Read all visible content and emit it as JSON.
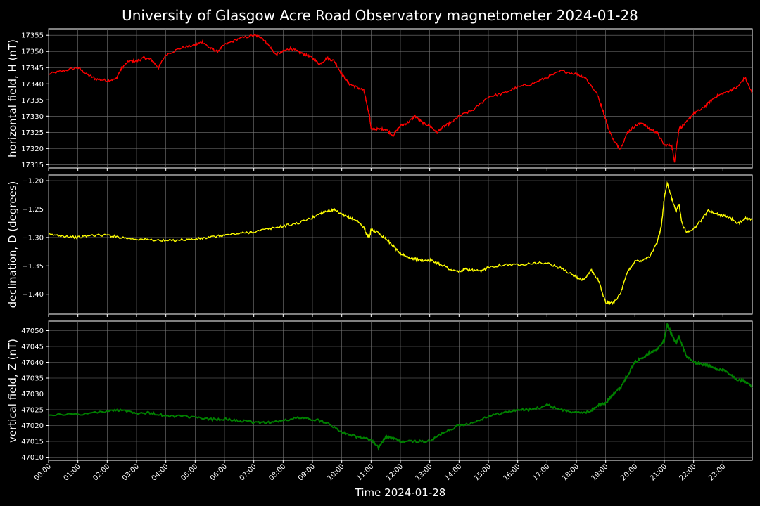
{
  "chart_data": {
    "type": "line",
    "title": "University of Glasgow Acre Road Observatory magnetometer 2024-01-28",
    "xlabel": "Time 2024-01-28",
    "x_ticks": [
      "00:00",
      "01:00",
      "02:00",
      "03:00",
      "04:00",
      "05:00",
      "06:00",
      "07:00",
      "08:00",
      "09:00",
      "10:00",
      "11:00",
      "12:00",
      "13:00",
      "14:00",
      "15:00",
      "16:00",
      "17:00",
      "18:00",
      "19:00",
      "20:00",
      "21:00",
      "22:00",
      "23:00"
    ],
    "x_range_hours": [
      0,
      24
    ],
    "grid": true,
    "panels": [
      {
        "name": "horizontal",
        "ylabel": "horizontal field, H (nT)",
        "color": "#ff0000",
        "ylim": [
          17314,
          17357
        ],
        "yticks": [
          17315,
          17320,
          17325,
          17330,
          17335,
          17340,
          17345,
          17350,
          17355
        ],
        "ytick_labels": [
          "17315",
          "17320",
          "17325",
          "17330",
          "17335",
          "17340",
          "17345",
          "17350",
          "17355"
        ],
        "series": {
          "x": [
            0,
            0.5,
            1,
            1.3,
            1.6,
            2,
            2.3,
            2.5,
            2.75,
            3,
            3.25,
            3.5,
            3.75,
            4,
            4.5,
            5,
            5.25,
            5.5,
            5.75,
            6,
            6.5,
            7,
            7.25,
            7.5,
            7.75,
            8,
            8.25,
            8.5,
            8.75,
            9,
            9.25,
            9.5,
            9.75,
            10,
            10.25,
            10.5,
            10.75,
            10.85,
            10.95,
            11,
            11.25,
            11.5,
            11.75,
            12,
            12.25,
            12.5,
            12.75,
            13,
            13.25,
            13.5,
            13.75,
            14,
            14.5,
            15,
            15.5,
            16,
            16.5,
            17,
            17.5,
            18,
            18.3,
            18.7,
            18.9,
            19.1,
            19.3,
            19.5,
            19.75,
            20,
            20.25,
            20.5,
            20.75,
            21,
            21.25,
            21.35,
            21.5,
            21.75,
            22,
            22.25,
            22.5,
            22.75,
            23,
            23.25,
            23.5,
            23.75,
            24
          ],
          "y": [
            17343,
            17344,
            17345,
            17343,
            17341.5,
            17341,
            17341.5,
            17345,
            17347,
            17347,
            17348,
            17347.5,
            17345,
            17349,
            17351,
            17352,
            17353,
            17351,
            17350,
            17352,
            17354,
            17355,
            17354.5,
            17352,
            17349,
            17350,
            17351,
            17350,
            17349,
            17348,
            17346,
            17348,
            17347,
            17343,
            17340,
            17339,
            17338,
            17334,
            17330,
            17326,
            17326,
            17326,
            17324,
            17327,
            17328,
            17330,
            17328,
            17327,
            17325,
            17327,
            17328,
            17330,
            17332,
            17336,
            17337,
            17339,
            17340,
            17342,
            17344,
            17343,
            17342,
            17337,
            17332,
            17326,
            17322,
            17320,
            17325,
            17327,
            17328,
            17326,
            17325,
            17321,
            17321,
            17316,
            17326,
            17328,
            17331,
            17332,
            17334,
            17336,
            17337,
            17338,
            17339,
            17342,
            17337
          ]
        }
      },
      {
        "name": "declination",
        "ylabel": "declination, D (degrees)",
        "color": "#ffff00",
        "ylim": [
          -1.435,
          -1.19
        ],
        "yticks": [
          -1.4,
          -1.35,
          -1.3,
          -1.25,
          -1.2
        ],
        "ytick_labels": [
          "−1.40",
          "−1.35",
          "−1.30",
          "−1.25",
          "−1.20"
        ],
        "series": {
          "x": [
            0,
            0.5,
            1,
            1.5,
            2,
            2.5,
            3,
            3.5,
            4,
            4.5,
            5,
            5.5,
            6,
            6.5,
            7,
            7.5,
            8,
            8.5,
            9,
            9.25,
            9.5,
            9.75,
            10,
            10.25,
            10.5,
            10.75,
            10.85,
            10.95,
            11,
            11.25,
            11.5,
            11.75,
            12,
            12.25,
            12.5,
            12.75,
            13,
            13.25,
            13.5,
            13.75,
            14,
            14.25,
            14.5,
            14.75,
            15,
            15.5,
            16,
            16.5,
            17,
            17.5,
            18,
            18.25,
            18.5,
            18.75,
            19,
            19.25,
            19.5,
            19.75,
            20,
            20.25,
            20.5,
            20.75,
            20.9,
            21,
            21.1,
            21.25,
            21.4,
            21.5,
            21.6,
            21.75,
            22,
            22.25,
            22.5,
            22.75,
            23,
            23.25,
            23.5,
            23.75,
            24
          ],
          "y": [
            -1.295,
            -1.297,
            -1.3,
            -1.296,
            -1.296,
            -1.3,
            -1.303,
            -1.304,
            -1.306,
            -1.304,
            -1.303,
            -1.3,
            -1.296,
            -1.293,
            -1.29,
            -1.285,
            -1.28,
            -1.275,
            -1.265,
            -1.258,
            -1.253,
            -1.252,
            -1.26,
            -1.265,
            -1.27,
            -1.282,
            -1.295,
            -1.3,
            -1.285,
            -1.292,
            -1.302,
            -1.315,
            -1.328,
            -1.335,
            -1.338,
            -1.34,
            -1.34,
            -1.345,
            -1.35,
            -1.358,
            -1.36,
            -1.356,
            -1.358,
            -1.36,
            -1.352,
            -1.348,
            -1.348,
            -1.345,
            -1.345,
            -1.355,
            -1.37,
            -1.376,
            -1.357,
            -1.375,
            -1.415,
            -1.415,
            -1.4,
            -1.36,
            -1.342,
            -1.34,
            -1.333,
            -1.31,
            -1.28,
            -1.23,
            -1.205,
            -1.23,
            -1.255,
            -1.24,
            -1.275,
            -1.29,
            -1.285,
            -1.27,
            -1.252,
            -1.258,
            -1.262,
            -1.265,
            -1.277,
            -1.265,
            -1.27
          ]
        }
      },
      {
        "name": "vertical",
        "ylabel": "vertical field, Z (nT)",
        "color": "#008000",
        "ylim": [
          47009,
          47053
        ],
        "yticks": [
          47010,
          47015,
          47020,
          47025,
          47030,
          47035,
          47040,
          47045,
          47050
        ],
        "ytick_labels": [
          "47010",
          "47015",
          "47020",
          "47025",
          "47030",
          "47035",
          "47040",
          "47045",
          "47050"
        ],
        "series": {
          "x": [
            0,
            1,
            2,
            2.5,
            3,
            3.5,
            4,
            4.5,
            5,
            5.5,
            6,
            6.5,
            7,
            7.5,
            8,
            8.5,
            9,
            9.5,
            10,
            10.5,
            11,
            11.25,
            11.5,
            11.75,
            12,
            12.5,
            13,
            13.5,
            14,
            14.5,
            15,
            15.5,
            16,
            16.5,
            17,
            17.5,
            18,
            18.5,
            18.75,
            19,
            19.25,
            19.5,
            19.75,
            20,
            20.25,
            20.5,
            20.75,
            21,
            21.1,
            21.25,
            21.4,
            21.5,
            21.75,
            22,
            22.25,
            22.5,
            22.75,
            23,
            23.25,
            23.5,
            23.75,
            24
          ],
          "y": [
            47023.5,
            47023.5,
            47024.5,
            47025,
            47024,
            47024,
            47023,
            47023,
            47022.5,
            47022,
            47022,
            47021.5,
            47021,
            47021,
            47021.5,
            47022.5,
            47022,
            47021,
            47018,
            47016.5,
            47015.5,
            47013,
            47016.5,
            47016,
            47015,
            47015,
            47015,
            47018,
            47020,
            47021,
            47023,
            47024,
            47025,
            47025,
            47026.5,
            47025,
            47024,
            47024.5,
            47026.5,
            47027,
            47030,
            47032,
            47036,
            47040,
            47041.5,
            47043,
            47044,
            47047,
            47052,
            47049,
            47046,
            47048,
            47042,
            47040,
            47039.5,
            47039,
            47038,
            47037.5,
            47036,
            47034.5,
            47034,
            47032
          ]
        }
      }
    ]
  }
}
